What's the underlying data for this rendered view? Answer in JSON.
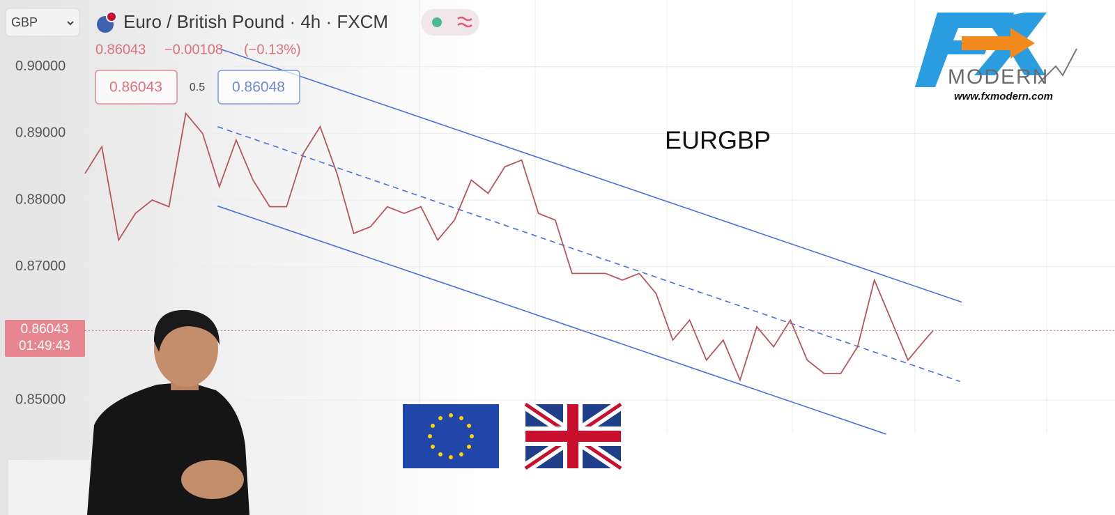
{
  "toolbar": {
    "symbol_select": "GBP",
    "title": "Euro / British Pound · 4h · FXCM"
  },
  "quote": {
    "last": "0.86043",
    "change": "−0.00108",
    "change_pct": "(−0.13%)"
  },
  "order": {
    "sell": "0.86043",
    "spread": "0.5",
    "buy": "0.86048"
  },
  "price_tag": {
    "price": "0.86043",
    "countdown": "01:49:43"
  },
  "logo": {
    "brand": "MODERN",
    "url": "www.fxmodern.com"
  },
  "chart_data": {
    "type": "line",
    "title": "EURGBP",
    "color": "#b9545f",
    "x": [
      0,
      2,
      4,
      6,
      8,
      10,
      12,
      14,
      16,
      18,
      20,
      22,
      24,
      26,
      28,
      30,
      32,
      34,
      36,
      38,
      40,
      42,
      44,
      46,
      48,
      50,
      52,
      54,
      56,
      58,
      60,
      62,
      64,
      66,
      68,
      70,
      72,
      74,
      76,
      78,
      80,
      82,
      84,
      86,
      88,
      90,
      92,
      94,
      96,
      98,
      100,
      101
    ],
    "values": [
      0.884,
      0.888,
      0.874,
      0.878,
      0.88,
      0.879,
      0.893,
      0.89,
      0.882,
      0.889,
      0.883,
      0.879,
      0.879,
      0.887,
      0.891,
      0.884,
      0.875,
      0.876,
      0.879,
      0.878,
      0.879,
      0.874,
      0.877,
      0.883,
      0.881,
      0.885,
      0.886,
      0.878,
      0.877,
      0.869,
      0.869,
      0.869,
      0.868,
      0.869,
      0.866,
      0.859,
      0.862,
      0.856,
      0.859,
      0.853,
      0.861,
      0.858,
      0.862,
      0.856,
      0.854,
      0.854,
      0.858,
      0.868,
      0.862,
      0.856,
      0.859,
      0.86043
    ],
    "last_price": 0.86043,
    "channel": [
      {
        "x": [
          16,
          104.4
        ],
        "values": [
          0.9027,
          0.8647
        ],
        "dashed": false
      },
      {
        "x": [
          15.8,
          104.2
        ],
        "values": [
          0.891,
          0.8528
        ],
        "dashed": true
      },
      {
        "x": [
          15.8,
          95.4
        ],
        "values": [
          0.8791,
          0.8449
        ],
        "dashed": false
      }
    ],
    "channel_color": "#4a6fd8",
    "xlim": [
      0,
      120
    ],
    "ylim": [
      0.845,
      0.91
    ],
    "yticks": [
      {
        "value": 0.85,
        "label": "0.85000"
      },
      {
        "value": 0.87,
        "label": "0.87000"
      },
      {
        "value": 0.88,
        "label": "0.88000"
      },
      {
        "value": 0.89,
        "label": "0.89000"
      },
      {
        "value": 0.9,
        "label": "0.90000"
      }
    ],
    "grid": true
  }
}
